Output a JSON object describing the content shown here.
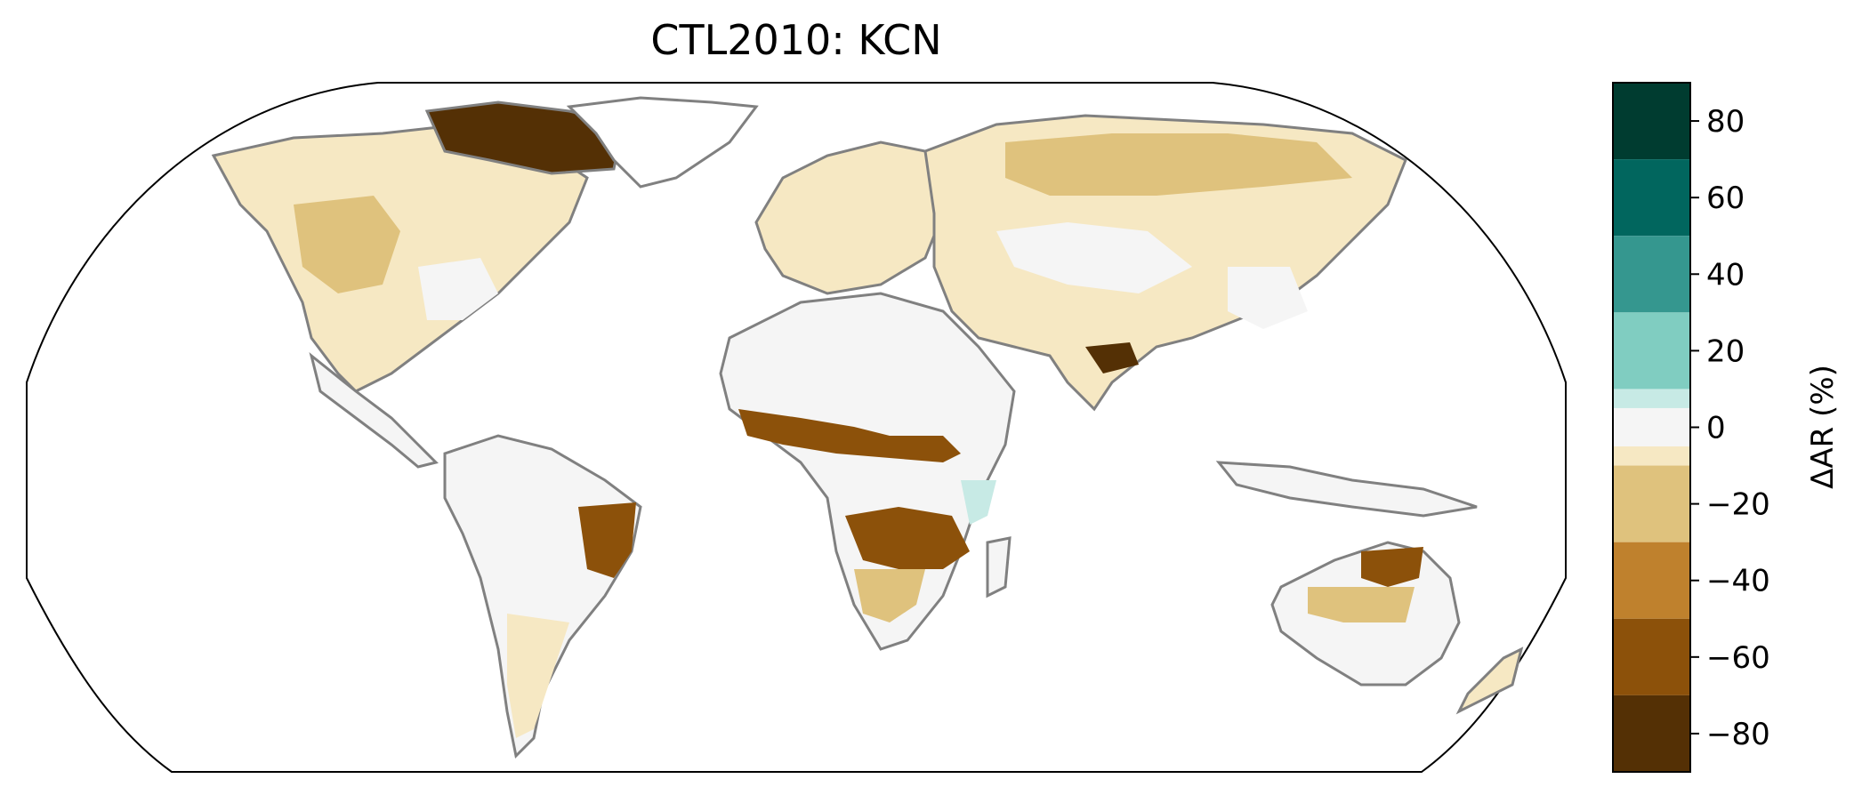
{
  "title": "CTL2010: KCN",
  "colorbar": {
    "label": "ΔAR (%)",
    "ticks": [
      "80",
      "60",
      "40",
      "20",
      "0",
      "−20",
      "−40",
      "−60",
      "−80"
    ],
    "bins": [
      {
        "range": [
          70,
          90
        ],
        "color": "#003c30"
      },
      {
        "range": [
          50,
          70
        ],
        "color": "#01665e"
      },
      {
        "range": [
          30,
          50
        ],
        "color": "#35978f"
      },
      {
        "range": [
          10,
          30
        ],
        "color": "#80cdc1"
      },
      {
        "range": [
          5,
          10
        ],
        "color": "#c7eae5"
      },
      {
        "range": [
          -5,
          5
        ],
        "color": "#f5f5f5"
      },
      {
        "range": [
          -10,
          -5
        ],
        "color": "#f6e8c3"
      },
      {
        "range": [
          -30,
          -10
        ],
        "color": "#dfc27d"
      },
      {
        "range": [
          -50,
          -30
        ],
        "color": "#bf812d"
      },
      {
        "range": [
          -70,
          -50
        ],
        "color": "#8c510a"
      },
      {
        "range": [
          -90,
          -70
        ],
        "color": "#543005"
      }
    ],
    "vmin": -90,
    "vmax": 90
  },
  "map": {
    "projection": "Robinson",
    "coastline_color": "#808080",
    "border_color": "#c8c8c8"
  }
}
